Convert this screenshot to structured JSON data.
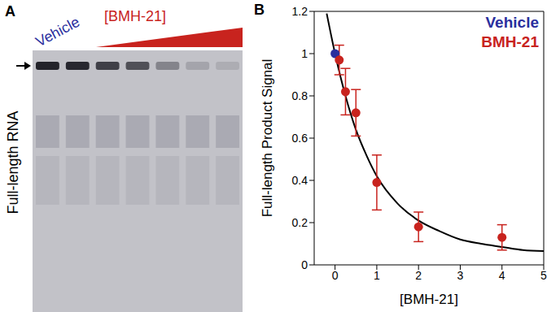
{
  "panel_a": {
    "label": "A",
    "vehicle_label": "Vehicle",
    "treatment_label": "[BMH-21]",
    "band_label": "Full-length RNA"
  },
  "chart_data": {
    "type": "scatter",
    "panel_label": "B",
    "x_label": "[BMH-21]",
    "y_label": "Full-length Product Signal",
    "xlim": [
      -0.5,
      5
    ],
    "xticks": [
      0,
      1,
      2,
      3,
      4,
      5
    ],
    "ylim": [
      0,
      1.2
    ],
    "yticks": [
      0,
      0.2,
      0.4,
      0.6,
      0.8,
      1,
      1.2
    ],
    "grid": false,
    "legend": "upper right",
    "series": [
      {
        "name": "Vehicle",
        "type": "scatter",
        "color": "#2a2f9e",
        "marker": "circle",
        "x": [
          0
        ],
        "values": [
          1
        ]
      },
      {
        "name": "BMH-21",
        "type": "scatter",
        "color": "#c8231e",
        "marker": "circle",
        "x": [
          0.1,
          0.25,
          0.5,
          1,
          2,
          4
        ],
        "values": [
          0.97,
          0.82,
          0.72,
          0.39,
          0.18,
          0.13
        ],
        "error": [
          0.07,
          0.11,
          0.11,
          0.13,
          0.07,
          0.06
        ]
      },
      {
        "type": "line",
        "color": "#000000",
        "line_style": "solid",
        "x": [
          -0.2,
          0,
          0.25,
          0.5,
          0.75,
          1,
          1.5,
          2,
          2.5,
          3,
          3.5,
          4,
          4.5,
          5
        ],
        "values": [
          1.19,
          1,
          0.8,
          0.64,
          0.52,
          0.42,
          0.29,
          0.21,
          0.16,
          0.12,
          0.1,
          0.085,
          0.07,
          0.065
        ]
      }
    ]
  }
}
